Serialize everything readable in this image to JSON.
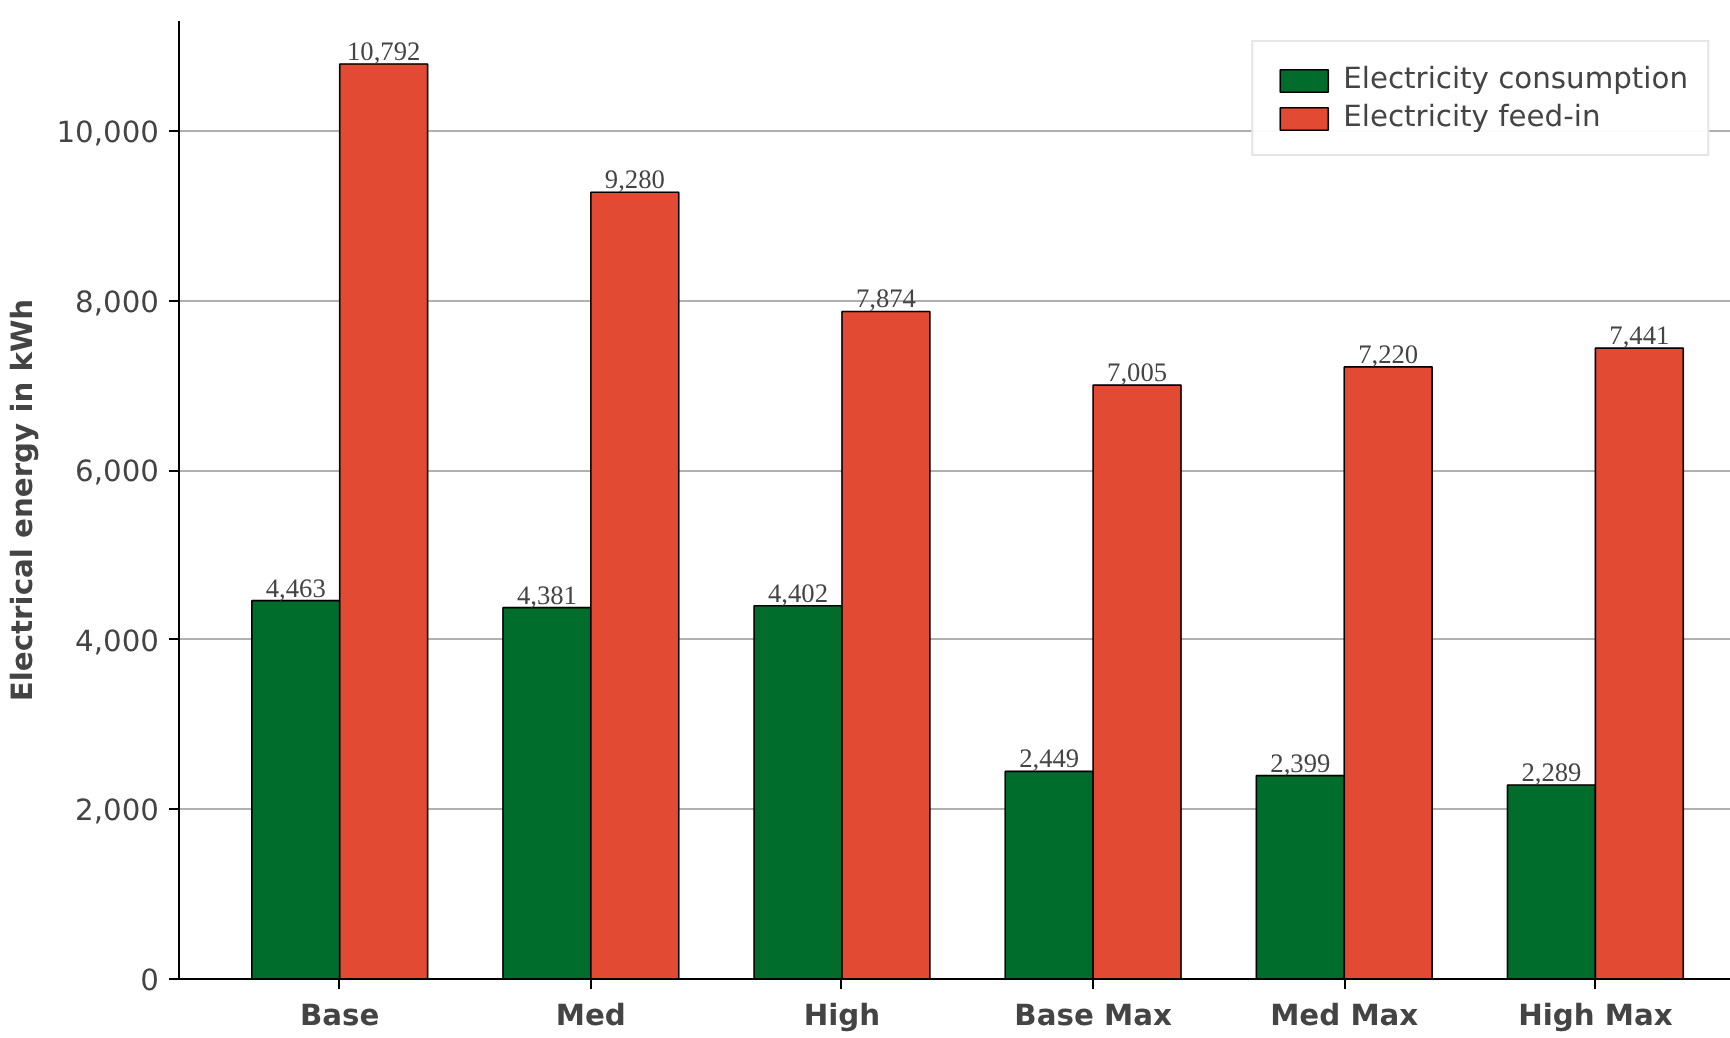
{
  "chart_data": {
    "type": "bar",
    "ylabel": "Electrical energy in kWh",
    "categories": [
      "Base",
      "Med",
      "High",
      "Base Max",
      "Med Max",
      "High Max"
    ],
    "series": [
      {
        "name": "Electricity consumption",
        "color": "#006d2c",
        "values": [
          4463,
          4381,
          4402,
          2449,
          2399,
          2289
        ],
        "value_labels": [
          "4,463",
          "4,381",
          "4,402",
          "2,449",
          "2,399",
          "2,289"
        ]
      },
      {
        "name": "Electricity feed-in",
        "color": "#e34a33",
        "values": [
          10792,
          9280,
          7874,
          7005,
          7220,
          7441
        ],
        "value_labels": [
          "10,792",
          "9,280",
          "7,874",
          "7,005",
          "7,220",
          "7,441"
        ]
      }
    ],
    "ylim": [
      0,
      11300
    ],
    "yticks": [
      {
        "value": 0,
        "label": "0"
      },
      {
        "value": 2000,
        "label": "2,000"
      },
      {
        "value": 4000,
        "label": "4,000"
      },
      {
        "value": 6000,
        "label": "6,000"
      },
      {
        "value": 8000,
        "label": "8,000"
      },
      {
        "value": 10000,
        "label": "10,000"
      }
    ],
    "grid": "y",
    "legend": "top right"
  }
}
